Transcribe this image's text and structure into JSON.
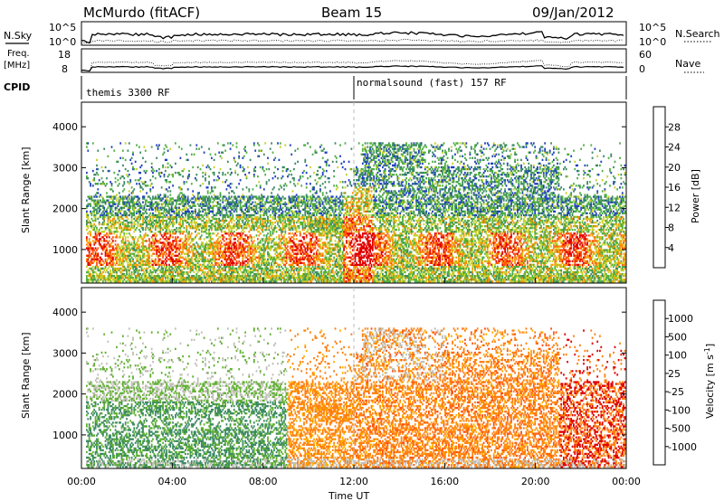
{
  "header": {
    "site": "McMurdo (fitACF)",
    "beam": "Beam 15",
    "date": "09/Jan/2012"
  },
  "params": {
    "nsky_label": "N.Sky",
    "nsearch_label": "N.Search",
    "freq_label": "Freq.",
    "freq_unit": "[MHz]",
    "nave_label": "Nave",
    "cpid_label": "CPID",
    "left_ticks_top": [
      "10^5",
      "10^0"
    ],
    "right_ticks_top": [
      "10^5",
      "10^0"
    ],
    "left_ticks_freq": [
      "18",
      "8"
    ],
    "right_ticks_nave": [
      "60",
      "0"
    ],
    "cpid_1": "themis 3300 RF",
    "cpid_2": "normalsound (fast) 157 RF"
  },
  "chart_data": [
    {
      "type": "heatmap",
      "name": "power",
      "ylabel": "Slant Range [km]",
      "yticks": [
        "1000",
        "2000",
        "3000",
        "4000"
      ],
      "ylim": [
        180,
        4600
      ],
      "xlim": [
        0,
        24
      ],
      "colorbar": {
        "label": "Power [dB]",
        "ticks": [
          "4",
          "8",
          "12",
          "16",
          "20",
          "24",
          "28"
        ],
        "colors": [
          "#0000ff",
          "#2040c0",
          "#3c8a64",
          "#50b040",
          "#c8d028",
          "#ff9000",
          "#ff5010",
          "#e00000"
        ]
      }
    },
    {
      "type": "heatmap",
      "name": "velocity",
      "ylabel": "Slant Range [km]",
      "yticks": [
        "1000",
        "2000",
        "3000",
        "4000"
      ],
      "ylim": [
        180,
        4600
      ],
      "xlim": [
        0,
        24
      ],
      "xticks": [
        "00:00",
        "04:00",
        "08:00",
        "12:00",
        "16:00",
        "20:00",
        "00:00"
      ],
      "xlabel": "Time UT",
      "colorbar": {
        "label": "Velocity [m s",
        "label_sup": "-1",
        "label_end": "]",
        "ticks": [
          "1000",
          "500",
          "100",
          "25",
          "-25",
          "-100",
          "-500",
          "-1000"
        ],
        "colors": [
          "#1c3ca8",
          "#3a7a9a",
          "#3c8a64",
          "#60b030",
          "#c0c0b8",
          "#ffb000",
          "#ff8010",
          "#ff5010",
          "#e00000"
        ]
      }
    }
  ]
}
